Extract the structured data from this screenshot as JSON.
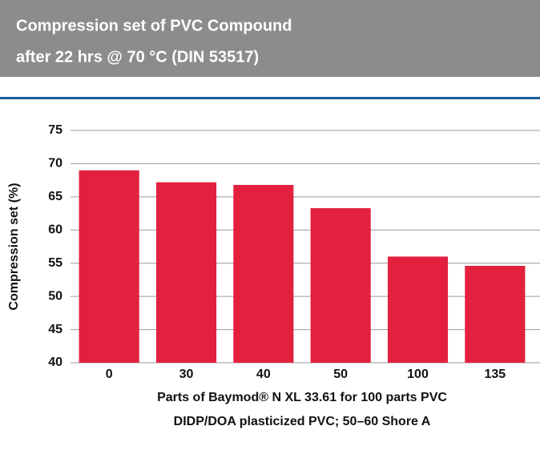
{
  "chart_data": {
    "type": "bar",
    "title": [
      "Compression set of PVC Compound",
      "after 22 hrs @ 70 °C  (DIN 53517)"
    ],
    "y_label": "Compression set (%)",
    "x_label": [
      "Parts of Baymod® N XL 33.61 for 100 parts PVC",
      "DIDP/DOA plasticized PVC; 50–60 Shore A"
    ],
    "categories": [
      "0",
      "30",
      "40",
      "50",
      "100",
      "135"
    ],
    "values": [
      69,
      67.2,
      66.8,
      63.3,
      56,
      54.6
    ],
    "color": "#e4203f",
    "ylim": [
      40,
      75
    ],
    "yticks": [
      40,
      45,
      50,
      55,
      60,
      65,
      70,
      75
    ],
    "grid": true
  }
}
